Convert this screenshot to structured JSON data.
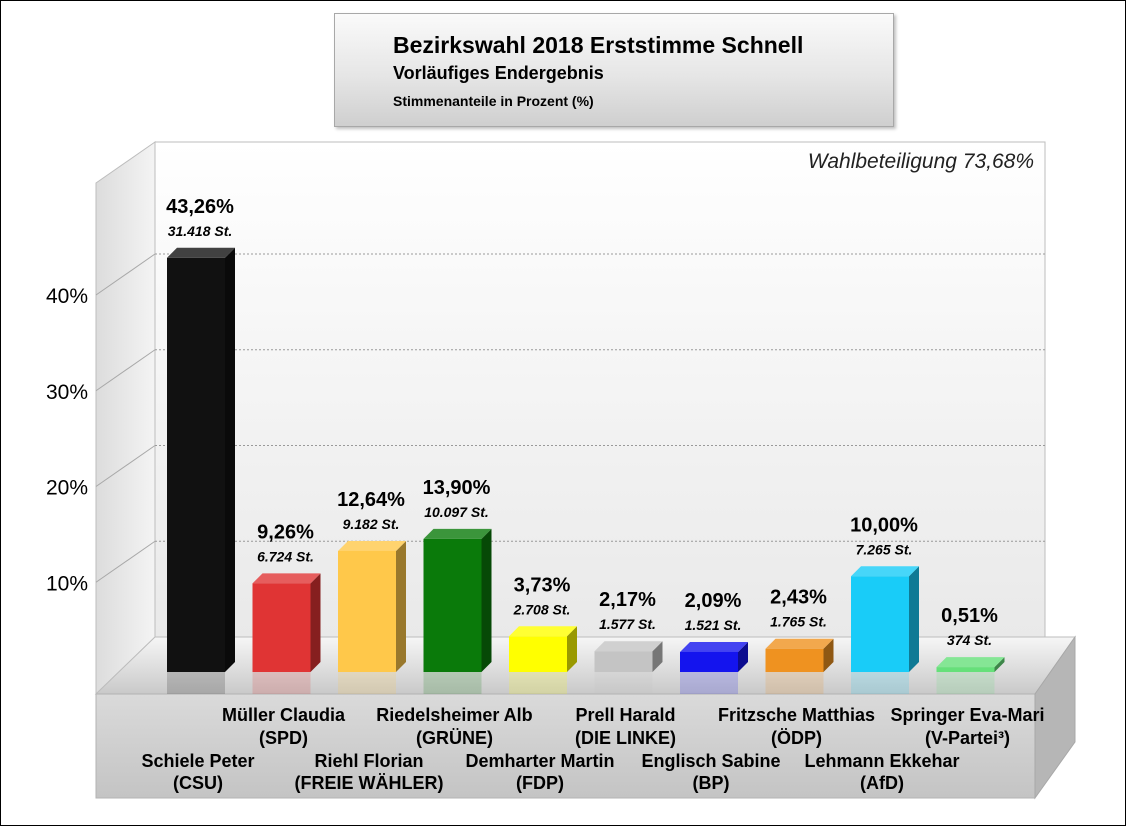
{
  "title": "Bezirkswahl 2018 Erststimme Schnell",
  "subtitle": "Vorläufiges Endergebnis",
  "note": "Stimmenanteile in Prozent (%)",
  "turnout": "Wahlbeteiligung 73,68%",
  "chart_data": {
    "type": "bar",
    "title": "Bezirkswahl 2018 Erststimme Schnell",
    "subtitle": "Vorläufiges Endergebnis",
    "ylabel": "",
    "xlabel": "",
    "ylim": [
      0,
      50
    ],
    "yticks": [
      10,
      20,
      30,
      40
    ],
    "ytick_labels": [
      "10%",
      "20%",
      "30%",
      "40%"
    ],
    "grid": true,
    "categories": [
      {
        "name": "Schiele Peter",
        "party": "(CSU)",
        "value": 43.26,
        "value_label": "43,26%",
        "votes": "31.418 St.",
        "color": "#111111"
      },
      {
        "name": "Müller Claudia",
        "party": "(SPD)",
        "value": 9.26,
        "value_label": "9,26%",
        "votes": "6.724 St.",
        "color": "#e03434"
      },
      {
        "name": "Riehl Florian",
        "party": "(FREIE WÄHLER)",
        "value": 12.64,
        "value_label": "12,64%",
        "votes": "9.182 St.",
        "color": "#ffc84a"
      },
      {
        "name": "Riedelsheimer Alb",
        "party": "(GRÜNE)",
        "value": 13.9,
        "value_label": "13,90%",
        "votes": "10.097 St.",
        "color": "#0a7a0a"
      },
      {
        "name": "Demharter Martin",
        "party": "(FDP)",
        "value": 3.73,
        "value_label": "3,73%",
        "votes": "2.708 St.",
        "color": "#ffff00"
      },
      {
        "name": "Prell Harald",
        "party": "(DIE LINKE)",
        "value": 2.17,
        "value_label": "2,17%",
        "votes": "1.577 St.",
        "color": "#c4c4c4"
      },
      {
        "name": "Englisch Sabine",
        "party": "(BP)",
        "value": 2.09,
        "value_label": "2,09%",
        "votes": "1.521 St.",
        "color": "#1414ee"
      },
      {
        "name": "Fritzsche Matthias",
        "party": "(ÖDP)",
        "value": 2.43,
        "value_label": "2,43%",
        "votes": "1.765 St.",
        "color": "#ef9220"
      },
      {
        "name": "Lehmann Ekkehar",
        "party": "(AfD)",
        "value": 10.0,
        "value_label": "10,00%",
        "votes": "7.265 St.",
        "color": "#19ccf8"
      },
      {
        "name": "Springer Eva-Mari",
        "party": "(V-Partei³)",
        "value": 0.51,
        "value_label": "0,51%",
        "votes": "374 St.",
        "color": "#66e07a"
      }
    ]
  }
}
